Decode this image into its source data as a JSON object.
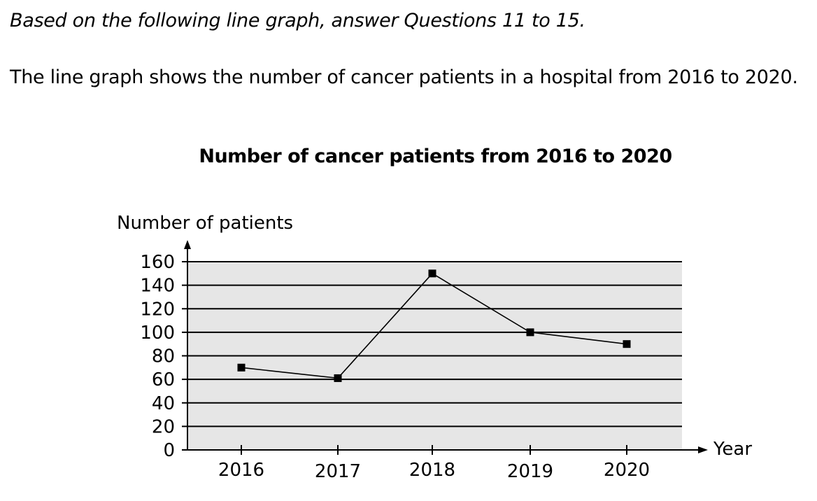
{
  "instruction": "Based on the following line graph, answer Questions 11 to 15.",
  "description": "The line graph shows the number of cancer patients in a hospital from 2016 to 2020.",
  "chart_data": {
    "type": "line",
    "title": "Number of cancer patients from 2016 to 2020",
    "xlabel": "Year",
    "ylabel": "Number of patients",
    "categories": [
      "2016",
      "2017",
      "2018",
      "2019",
      "2020"
    ],
    "values": [
      70,
      61,
      150,
      100,
      90
    ],
    "yticks": [
      0,
      20,
      40,
      60,
      80,
      100,
      120,
      140,
      160
    ],
    "ylim": [
      0,
      160
    ],
    "grid": true,
    "colors": {
      "plot_background": "#e6e6e6",
      "line": "#000000",
      "marker": "#000000"
    },
    "marker": "square"
  }
}
